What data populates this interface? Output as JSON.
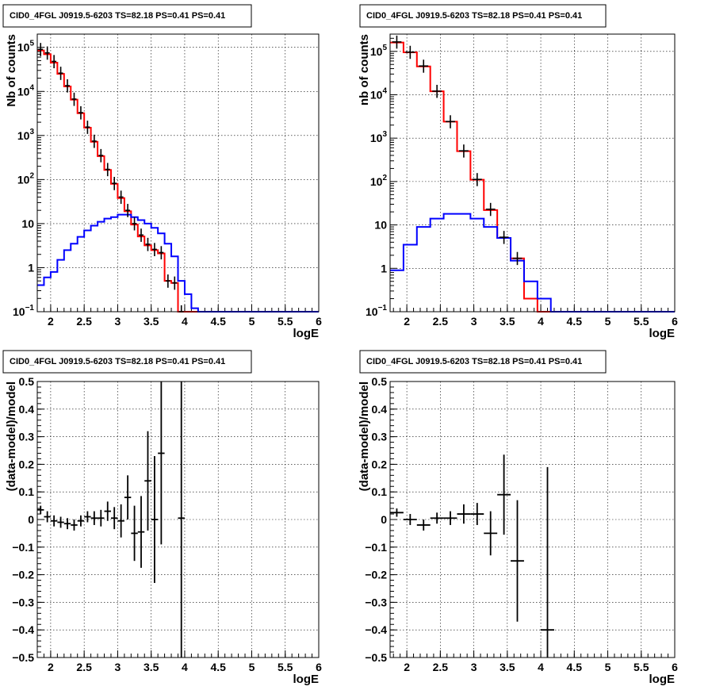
{
  "chart_data": [
    {
      "type": "step-histogram",
      "title": "CID0_4FGL J0919.5-6203 TS=82.18 PS=0.41 PS=0.41",
      "xlabel": "logE",
      "ylabel": "Nb of counts",
      "yscale": "log",
      "xlim": [
        1.8,
        6.0
      ],
      "ylim": [
        0.1,
        200000
      ],
      "xticks": [
        "2",
        "2.5",
        "3",
        "3.5",
        "4",
        "4.5",
        "5",
        "5.5",
        "6"
      ],
      "yticks": [
        {
          "value": 0.1,
          "base": "10",
          "exp": "−1"
        },
        {
          "value": 1,
          "base": "1",
          "exp": ""
        },
        {
          "value": 10,
          "base": "10",
          "exp": ""
        },
        {
          "value": 100,
          "base": "10",
          "exp": "2"
        },
        {
          "value": 1000,
          "base": "10",
          "exp": "3"
        },
        {
          "value": 10000,
          "base": "10",
          "exp": "4"
        },
        {
          "value": 100000,
          "base": "10",
          "exp": "5"
        }
      ],
      "grid": true,
      "bin_edges": [
        1.8,
        1.9,
        2.0,
        2.1,
        2.2,
        2.3,
        2.4,
        2.5,
        2.6,
        2.7,
        2.8,
        2.9,
        3.0,
        3.1,
        3.2,
        3.3,
        3.4,
        3.5,
        3.6,
        3.7,
        3.8,
        3.9,
        4.0,
        4.1,
        4.2,
        4.3,
        4.4,
        4.5,
        4.6,
        4.7,
        4.8,
        4.9,
        5.0,
        5.1,
        5.2,
        5.3,
        5.4,
        5.5,
        5.6,
        5.7,
        5.8,
        5.9,
        6.0
      ],
      "series": [
        {
          "role": "model-total",
          "color": "#ff0000",
          "values": [
            85000,
            70000,
            45000,
            25000,
            13000,
            6500,
            3200,
            1500,
            720,
            340,
            165,
            80,
            38,
            19,
            9.5,
            5.1,
            3.2,
            2.5,
            2.1,
            0.5,
            0.45,
            0.08,
            0.08,
            0.08,
            0.08,
            0.08,
            0.08,
            0.08,
            0.08,
            0.08,
            0.08,
            0.08,
            0.08,
            0.08,
            0.08,
            0.08,
            0.08,
            0.08,
            0.08,
            0.08,
            0.08,
            0.08
          ]
        },
        {
          "role": "source-model",
          "color": "#0000ff",
          "values": [
            0.4,
            0.6,
            0.8,
            1.5,
            2.5,
            3.5,
            5,
            7,
            9,
            11,
            13,
            14,
            16,
            16,
            14,
            12,
            10,
            8,
            6,
            3.5,
            1.8,
            0.5,
            0.25,
            0.12,
            0.1,
            0.1,
            0.1,
            0.1,
            0.1,
            0.1,
            0.1,
            0.1,
            0.1,
            0.1,
            0.1,
            0.1,
            0.1,
            0.1,
            0.1,
            0.1,
            0.1,
            0.1
          ]
        },
        {
          "role": "data",
          "color": "#000000",
          "kind": "points",
          "points": [
            [
              1.85,
              90000,
              0
            ],
            [
              1.95,
              75000,
              0
            ],
            [
              2.05,
              48000,
              0
            ],
            [
              2.15,
              26000,
              0
            ],
            [
              2.25,
              13500,
              0
            ],
            [
              2.35,
              6700,
              0
            ],
            [
              2.45,
              3300,
              0
            ],
            [
              2.55,
              1550,
              0
            ],
            [
              2.65,
              745,
              0
            ],
            [
              2.75,
              352,
              0
            ],
            [
              2.85,
              170,
              0
            ],
            [
              2.95,
              82,
              0
            ],
            [
              3.05,
              40,
              0
            ],
            [
              3.15,
              20,
              0
            ],
            [
              3.25,
              10,
              0
            ],
            [
              3.35,
              5.5,
              0
            ],
            [
              3.45,
              3.4,
              0
            ],
            [
              3.55,
              2.6,
              0
            ],
            [
              3.65,
              2.2,
              0
            ],
            [
              3.75,
              0.5,
              0
            ],
            [
              3.85,
              0.45,
              0
            ],
            [
              3.95,
              0.1,
              0
            ]
          ]
        }
      ]
    },
    {
      "type": "step-histogram",
      "title": "CID0_4FGL J0919.5-6203 TS=82.18 PS=0.41 PS=0.41",
      "xlabel": "logE",
      "ylabel": "nb of counts",
      "yscale": "log",
      "xlim": [
        1.75,
        6.0
      ],
      "ylim": [
        0.1,
        250000
      ],
      "xticks": [
        "2",
        "2.5",
        "3",
        "3.5",
        "4",
        "4.5",
        "5",
        "5.5",
        "6"
      ],
      "yticks": [
        {
          "value": 0.1,
          "base": "10",
          "exp": "−1"
        },
        {
          "value": 1,
          "base": "1",
          "exp": ""
        },
        {
          "value": 10,
          "base": "10",
          "exp": ""
        },
        {
          "value": 100,
          "base": "10",
          "exp": "2"
        },
        {
          "value": 1000,
          "base": "10",
          "exp": "3"
        },
        {
          "value": 10000,
          "base": "10",
          "exp": "4"
        },
        {
          "value": 100000,
          "base": "10",
          "exp": "5"
        }
      ],
      "grid": true,
      "bin_edges": [
        1.75,
        1.95,
        2.15,
        2.35,
        2.55,
        2.75,
        2.95,
        3.15,
        3.35,
        3.55,
        3.75,
        3.95,
        4.15,
        4.35,
        4.55,
        4.75,
        4.95,
        5.15,
        5.35,
        5.55,
        5.75,
        6.0
      ],
      "series": [
        {
          "role": "model-total",
          "color": "#ff0000",
          "values": [
            160000,
            95000,
            45000,
            12000,
            2400,
            500,
            110,
            22,
            5,
            1.7,
            0.2,
            0.1,
            0.08,
            0.08,
            0.08,
            0.08,
            0.08,
            0.08,
            0.08,
            0.08,
            0.08
          ]
        },
        {
          "role": "source-model",
          "color": "#0000ff",
          "values": [
            0.9,
            3.5,
            9,
            14,
            18,
            18,
            14,
            9,
            5,
            1.5,
            0.5,
            0.2,
            0.1,
            0.1,
            0.1,
            0.1,
            0.1,
            0.1,
            0.1,
            0.1,
            0.1
          ]
        },
        {
          "role": "data",
          "color": "#000000",
          "kind": "points",
          "points": [
            [
              1.85,
              165000,
              0
            ],
            [
              2.05,
              96000,
              0
            ],
            [
              2.25,
              46000,
              0
            ],
            [
              2.45,
              12100,
              0
            ],
            [
              2.65,
              2410,
              0
            ],
            [
              2.85,
              510,
              0
            ],
            [
              3.05,
              112,
              0
            ],
            [
              3.25,
              23,
              0
            ],
            [
              3.45,
              5.2,
              0
            ],
            [
              3.65,
              1.7,
              0
            ]
          ]
        }
      ]
    },
    {
      "type": "errorbar",
      "title": "CID0_4FGL J0919.5-6203 TS=82.18 PS=0.41 PS=0.41",
      "xlabel": "logE",
      "ylabel": "(data-model)/model",
      "yscale": "linear",
      "xlim": [
        1.8,
        6.0
      ],
      "ylim": [
        -0.5,
        0.5
      ],
      "xticks": [
        "2",
        "2.5",
        "3",
        "3.5",
        "4",
        "4.5",
        "5",
        "5.5",
        "6"
      ],
      "yticks": [
        "0.5",
        "0.4",
        "0.3",
        "0.2",
        "0.1",
        "0",
        "−0.1",
        "−0.2",
        "−0.3",
        "−0.4",
        "−0.5"
      ],
      "grid": true,
      "series": [
        {
          "role": "residual",
          "color": "#000000",
          "xerr": 0.05,
          "points": [
            [
              1.85,
              0.035,
              0.015
            ],
            [
              1.95,
              0.01,
              0.02
            ],
            [
              2.05,
              -0.005,
              0.02
            ],
            [
              2.15,
              -0.01,
              0.02
            ],
            [
              2.25,
              -0.015,
              0.02
            ],
            [
              2.35,
              -0.02,
              0.02
            ],
            [
              2.45,
              -0.005,
              0.02
            ],
            [
              2.55,
              0.01,
              0.02
            ],
            [
              2.65,
              0.005,
              0.025
            ],
            [
              2.75,
              0.005,
              0.03
            ],
            [
              2.85,
              0.03,
              0.035
            ],
            [
              2.95,
              0.005,
              0.04
            ],
            [
              3.05,
              -0.005,
              0.06
            ],
            [
              3.15,
              0.08,
              0.08
            ],
            [
              3.25,
              -0.05,
              0.1
            ],
            [
              3.35,
              -0.045,
              0.13
            ],
            [
              3.45,
              0.14,
              0.18
            ],
            [
              3.55,
              0.0,
              0.23
            ],
            [
              3.65,
              0.24,
              0.33
            ],
            [
              3.95,
              0.005,
              0.6
            ]
          ]
        }
      ]
    },
    {
      "type": "errorbar",
      "title": "CID0_4FGL J0919.5-6203 TS=82.18 PS=0.41 PS=0.41",
      "xlabel": "logE",
      "ylabel": "(data-model)/model",
      "yscale": "linear",
      "xlim": [
        1.75,
        6.0
      ],
      "ylim": [
        -0.5,
        0.5
      ],
      "xticks": [
        "2",
        "2.5",
        "3",
        "3.5",
        "4",
        "4.5",
        "5",
        "5.5",
        "6"
      ],
      "yticks": [
        "0.5",
        "0.4",
        "0.3",
        "0.2",
        "0.1",
        "0",
        "−0.1",
        "−0.2",
        "−0.3",
        "−0.4",
        "−0.5"
      ],
      "grid": true,
      "series": [
        {
          "role": "residual",
          "color": "#000000",
          "xerr": 0.1,
          "points": [
            [
              1.85,
              0.025,
              0.015
            ],
            [
              2.05,
              0.0,
              0.02
            ],
            [
              2.25,
              -0.02,
              0.02
            ],
            [
              2.45,
              0.005,
              0.02
            ],
            [
              2.65,
              0.005,
              0.025
            ],
            [
              2.85,
              0.02,
              0.035
            ],
            [
              3.05,
              0.02,
              0.04
            ],
            [
              3.25,
              -0.05,
              0.08
            ],
            [
              3.45,
              0.09,
              0.145
            ],
            [
              3.65,
              -0.15,
              0.22
            ],
            [
              4.1,
              -0.4,
              0.59
            ]
          ]
        }
      ]
    }
  ]
}
